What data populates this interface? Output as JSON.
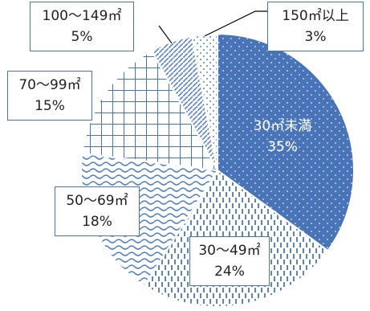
{
  "chart_data": {
    "type": "pie",
    "title": "",
    "categories": [
      "30㎡未満",
      "30～49㎡",
      "50～69㎡",
      "70～99㎡",
      "100～149㎡",
      "150㎡以上"
    ],
    "values": [
      35,
      24,
      18,
      15,
      5,
      3
    ],
    "value_labels": [
      "35%",
      "24%",
      "18%",
      "15%",
      "5%",
      "3%"
    ],
    "start_angle": "12 o'clock",
    "direction": "clockwise",
    "legend": "none",
    "colors": {
      "accent": "#4a74b8",
      "solid_fill": "#4a74b8",
      "pattern": "#5a85c6"
    }
  }
}
